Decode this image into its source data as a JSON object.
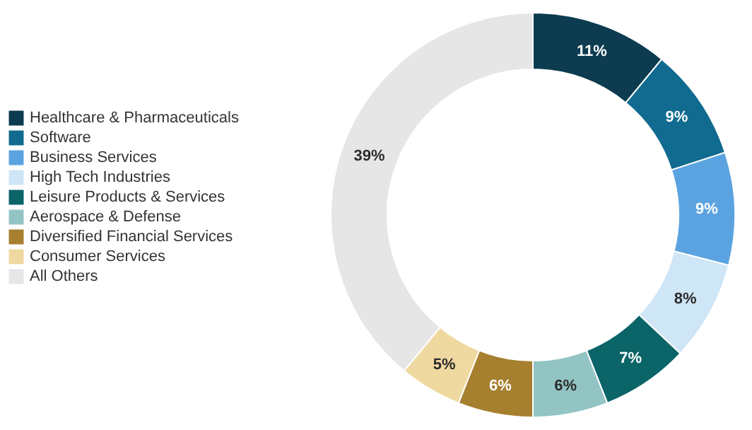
{
  "chart_data": {
    "type": "donut",
    "categories": [
      "Healthcare & Pharmaceuticals",
      "Software",
      "Business Services",
      "High Tech Industries",
      "Leisure Products & Services",
      "Aerospace & Defense",
      "Diversified Financial Services",
      "Consumer Services",
      "All Others"
    ],
    "values": [
      11,
      9,
      9,
      8,
      7,
      6,
      6,
      5,
      39
    ],
    "value_labels": [
      "11%",
      "9%",
      "9%",
      "8%",
      "7%",
      "6%",
      "6%",
      "5%",
      "39%"
    ],
    "colors": [
      "#0d3b4f",
      "#116a8f",
      "#5ba3e0",
      "#cfe6f7",
      "#0a6468",
      "#93c4c4",
      "#a67f2f",
      "#efd9a0",
      "#e6e6e6"
    ],
    "legend": "left"
  }
}
